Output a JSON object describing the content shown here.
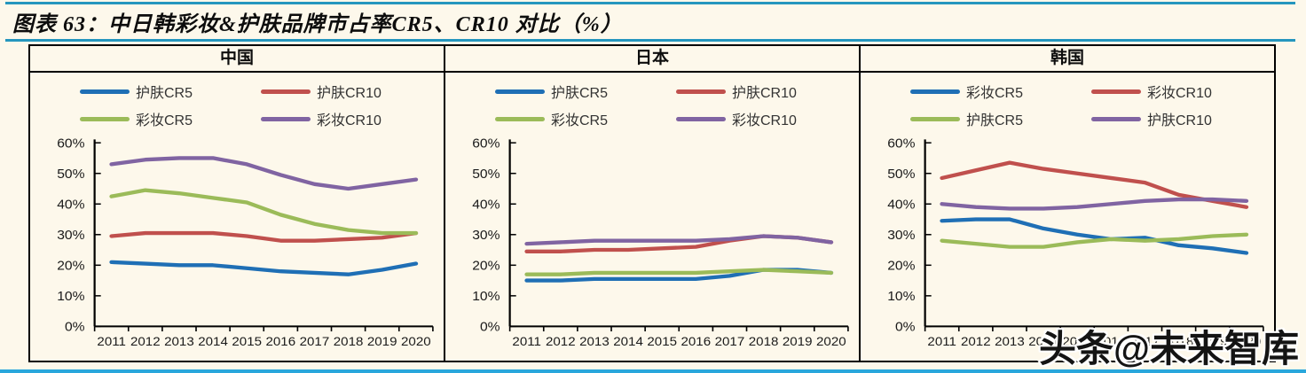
{
  "title": "图表 63：中日韩彩妆&护肤品牌市占率CR5、CR10 对比（%）",
  "watermark": "头条@未来智库",
  "colors": {
    "blue": "#1f6fb5",
    "red": "#c0504d",
    "green": "#9bbb59",
    "purple": "#8064a2",
    "rule_teal": "#2596be",
    "bottom_strip": "#29a7dc",
    "background": "#fdf8eb",
    "border": "#000000"
  },
  "chart_data": [
    {
      "type": "line",
      "title": "中国",
      "x": [
        "2011",
        "2012",
        "2013",
        "2014",
        "2015",
        "2016",
        "2017",
        "2018",
        "2019",
        "2020"
      ],
      "ylim": [
        0,
        60
      ],
      "yticks": [
        0,
        10,
        20,
        30,
        40,
        50,
        60
      ],
      "ytick_suffix": "%",
      "grid": false,
      "legend_position": "top",
      "series": [
        {
          "name": "护肤CR5",
          "color": "blue",
          "values": [
            21,
            20.5,
            20,
            20,
            19,
            18,
            17.5,
            17,
            18.5,
            20.5
          ]
        },
        {
          "name": "护肤CR10",
          "color": "red",
          "values": [
            29.5,
            30.5,
            30.5,
            30.5,
            29.5,
            28,
            28,
            28.5,
            29,
            30.5
          ]
        },
        {
          "name": "彩妆CR5",
          "color": "green",
          "values": [
            42.5,
            44.5,
            43.5,
            42,
            40.5,
            36.5,
            33.5,
            31.5,
            30.5,
            30.5
          ]
        },
        {
          "name": "彩妆CR10",
          "color": "purple",
          "values": [
            53,
            54.5,
            55,
            55,
            53,
            49.5,
            46.5,
            45,
            46.5,
            48
          ]
        }
      ]
    },
    {
      "type": "line",
      "title": "日本",
      "x": [
        "2011",
        "2012",
        "2013",
        "2014",
        "2015",
        "2016",
        "2017",
        "2018",
        "2019",
        "2020"
      ],
      "ylim": [
        0,
        60
      ],
      "yticks": [
        0,
        10,
        20,
        30,
        40,
        50,
        60
      ],
      "ytick_suffix": "%",
      "grid": false,
      "legend_position": "top",
      "series": [
        {
          "name": "护肤CR5",
          "color": "blue",
          "values": [
            15,
            15,
            15.5,
            15.5,
            15.5,
            15.5,
            16.5,
            18.5,
            18.5,
            17.5
          ]
        },
        {
          "name": "护肤CR10",
          "color": "red",
          "values": [
            24.5,
            24.5,
            25,
            25,
            25.5,
            26,
            28,
            29.5,
            29,
            27.5
          ]
        },
        {
          "name": "彩妆CR5",
          "color": "green",
          "values": [
            17,
            17,
            17.5,
            17.5,
            17.5,
            17.5,
            18,
            18.5,
            18,
            17.5
          ]
        },
        {
          "name": "彩妆CR10",
          "color": "purple",
          "values": [
            27,
            27.5,
            28,
            28,
            28,
            28,
            28.5,
            29.5,
            29,
            27.5
          ]
        }
      ]
    },
    {
      "type": "line",
      "title": "韩国",
      "x": [
        "2011",
        "2012",
        "2013",
        "2014",
        "2015",
        "2016",
        "2017",
        "2018",
        "2019",
        "2020"
      ],
      "ylim": [
        0,
        60
      ],
      "yticks": [
        0,
        10,
        20,
        30,
        40,
        50,
        60
      ],
      "ytick_suffix": "%",
      "grid": false,
      "legend_position": "top",
      "series": [
        {
          "name": "彩妆CR5",
          "color": "blue",
          "values": [
            34.5,
            35,
            35,
            32,
            30,
            28.5,
            29,
            26.5,
            25.5,
            24
          ]
        },
        {
          "name": "彩妆CR10",
          "color": "red",
          "values": [
            48.5,
            51,
            53.5,
            51.5,
            50,
            48.5,
            47,
            43,
            41,
            39
          ]
        },
        {
          "name": "护肤CR5",
          "color": "green",
          "values": [
            28,
            27,
            26,
            26,
            27.5,
            28.5,
            28,
            28.5,
            29.5,
            30
          ]
        },
        {
          "name": "护肤CR10",
          "color": "purple",
          "values": [
            40,
            39,
            38.5,
            38.5,
            39,
            40,
            41,
            41.5,
            41.5,
            41
          ]
        }
      ]
    }
  ]
}
